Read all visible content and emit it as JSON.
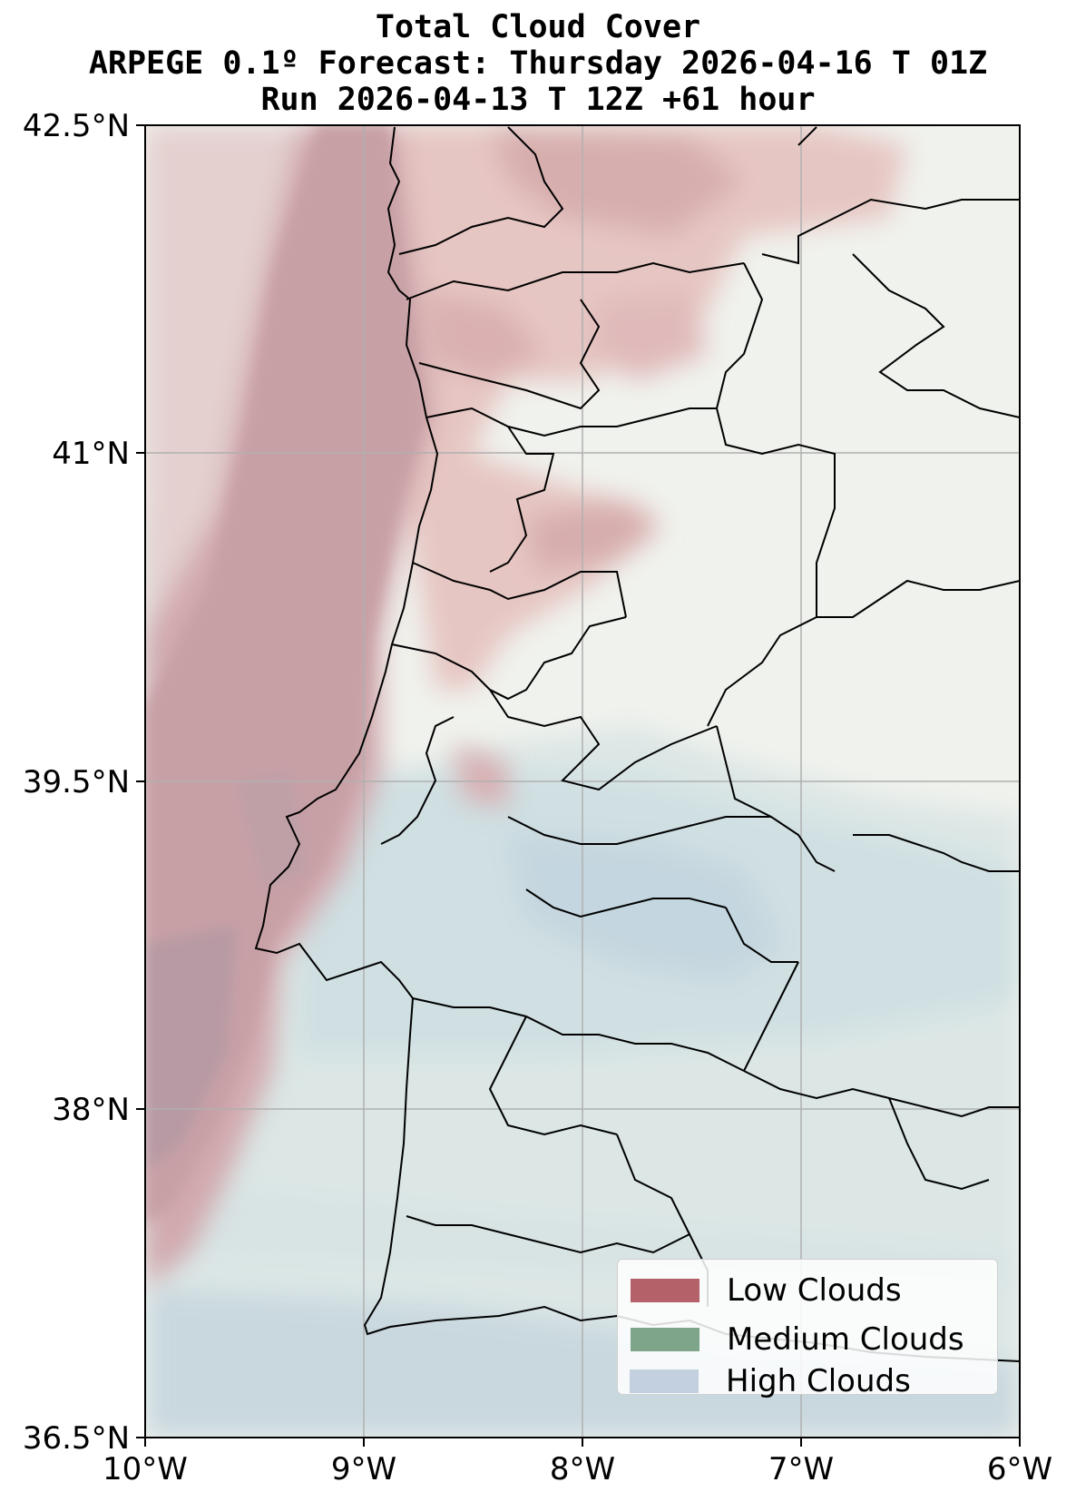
{
  "title": {
    "line1": "Total Cloud Cover",
    "line2": "ARPEGE 0.1º Forecast: Thursday 2026-04-16 T 01Z",
    "line3": "Run 2026-04-13 T 12Z +61 hour"
  },
  "axes": {
    "lon_ticks": [
      "10°W",
      "9°W",
      "8°W",
      "7°W",
      "6°W"
    ],
    "lat_ticks": [
      "42.5°N",
      "41°N",
      "39.5°N",
      "38°N",
      "36.5°N"
    ],
    "lon_range": [
      -10,
      -6
    ],
    "lat_range": [
      36.5,
      42.5
    ],
    "grid": true
  },
  "legend": {
    "placement": "bottom-right",
    "items": [
      {
        "label": "Low Clouds",
        "color": "#b5616a"
      },
      {
        "label": "Medium Clouds",
        "color": "#7ea48a"
      },
      {
        "label": "High Clouds",
        "color": "#c3d0e0"
      }
    ]
  },
  "colors": {
    "land_background": "#f0f2ed",
    "low_cloud": "#c98f94",
    "high_cloud": "#c6d6dc",
    "coastline": "#000000",
    "grid": "#b0b0b0"
  }
}
